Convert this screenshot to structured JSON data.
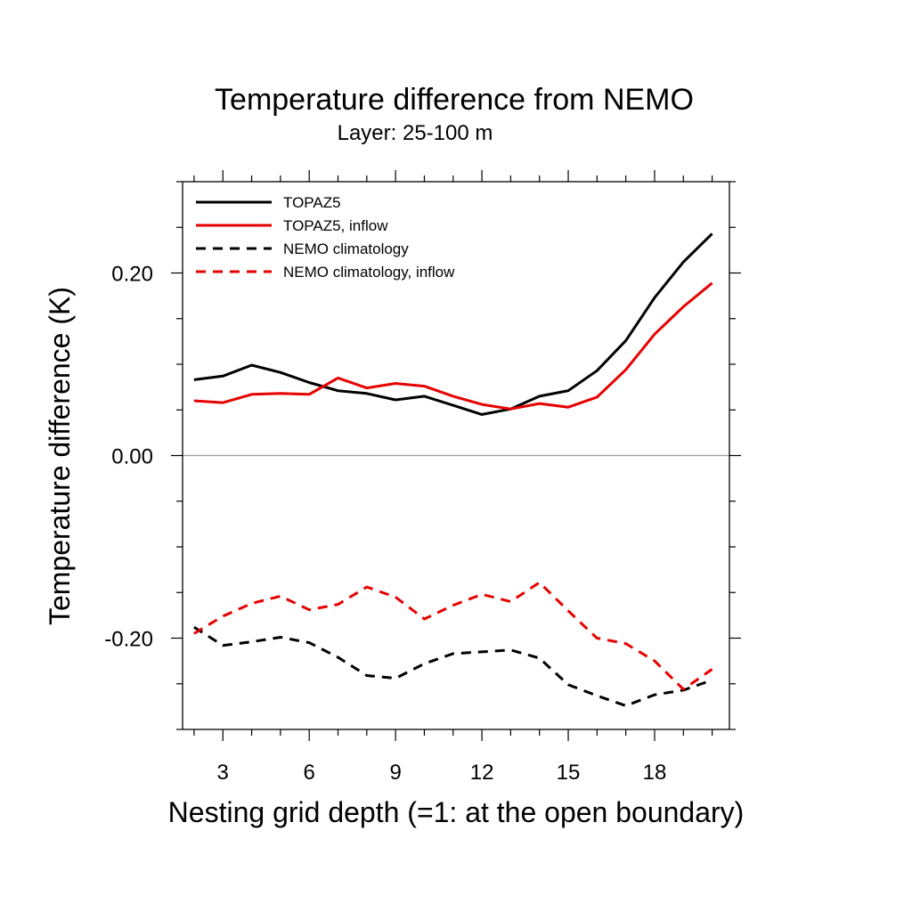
{
  "chart_data": {
    "type": "line",
    "title": "Temperature difference from NEMO",
    "subtitle": "Layer: 25-100 m",
    "xlabel": "Nesting grid depth (=1: at the open boundary)",
    "ylabel": "Temperature difference (K)",
    "xlim": [
      1.6,
      20.6
    ],
    "ylim": [
      -0.3,
      0.3
    ],
    "xticks": [
      3,
      6,
      9,
      12,
      15,
      18
    ],
    "xtick_labels": [
      "3",
      "6",
      "9",
      "12",
      "15",
      "18"
    ],
    "yticks": [
      -0.2,
      0.0,
      0.2
    ],
    "ytick_labels": [
      "-0.20",
      "0.00",
      "0.20"
    ],
    "zero_line": true,
    "grid": false,
    "legend_position": "top-left",
    "x": [
      2,
      3,
      4,
      5,
      6,
      7,
      8,
      9,
      10,
      11,
      12,
      13,
      14,
      15,
      16,
      17,
      18,
      19,
      20
    ],
    "series": [
      {
        "name": "TOPAZ5",
        "color": "#000000",
        "dash": "solid",
        "values": [
          0.083,
          0.087,
          0.099,
          0.091,
          0.08,
          0.071,
          0.068,
          0.061,
          0.065,
          0.055,
          0.045,
          0.051,
          0.065,
          0.071,
          0.093,
          0.126,
          0.173,
          0.212,
          0.243
        ]
      },
      {
        "name": "TOPAZ5, inflow",
        "color": "#e60000",
        "dash": "solid",
        "values": [
          0.06,
          0.058,
          0.067,
          0.068,
          0.067,
          0.085,
          0.074,
          0.079,
          0.076,
          0.065,
          0.056,
          0.051,
          0.057,
          0.053,
          0.064,
          0.094,
          0.133,
          0.163,
          0.189
        ]
      },
      {
        "name": "NEMO climatology",
        "color": "#000000",
        "dash": "dashed",
        "values": [
          -0.188,
          -0.208,
          -0.204,
          -0.199,
          -0.205,
          -0.221,
          -0.241,
          -0.244,
          -0.228,
          -0.217,
          -0.215,
          -0.213,
          -0.222,
          -0.251,
          -0.263,
          -0.274,
          -0.262,
          -0.257,
          -0.246
        ]
      },
      {
        "name": "NEMO climatology, inflow",
        "color": "#e60000",
        "dash": "dashed",
        "values": [
          -0.195,
          -0.176,
          -0.162,
          -0.154,
          -0.169,
          -0.163,
          -0.144,
          -0.155,
          -0.179,
          -0.164,
          -0.152,
          -0.16,
          -0.139,
          -0.17,
          -0.2,
          -0.206,
          -0.225,
          -0.256,
          -0.234
        ]
      }
    ]
  }
}
